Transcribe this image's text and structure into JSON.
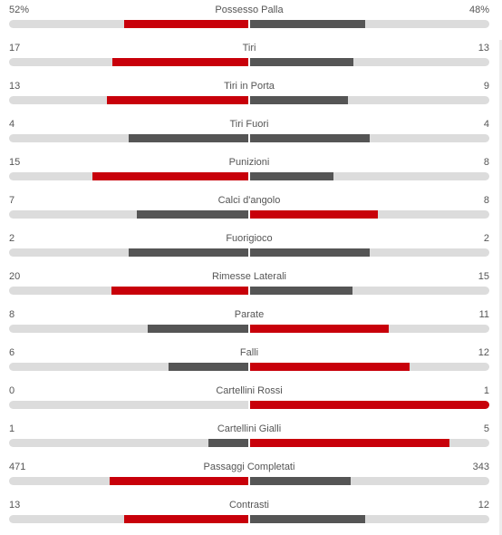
{
  "colors": {
    "leader": "#c8000a",
    "other": "#555555",
    "track": "#dcdcdc"
  },
  "stats": [
    {
      "label": "Possesso Palla",
      "home": "52%",
      "away": "48%",
      "home_fraction": 0.52,
      "away_fraction": 0.48
    },
    {
      "label": "Tiri",
      "home": "17",
      "away": "13",
      "home_fraction": 0.567,
      "away_fraction": 0.433
    },
    {
      "label": "Tiri in Porta",
      "home": "13",
      "away": "9",
      "home_fraction": 0.591,
      "away_fraction": 0.409
    },
    {
      "label": "Tiri Fuori",
      "home": "4",
      "away": "4",
      "home_fraction": 0.5,
      "away_fraction": 0.5
    },
    {
      "label": "Punizioni",
      "home": "15",
      "away": "8",
      "home_fraction": 0.652,
      "away_fraction": 0.348
    },
    {
      "label": "Calci d'angolo",
      "home": "7",
      "away": "8",
      "home_fraction": 0.467,
      "away_fraction": 0.533
    },
    {
      "label": "Fuorigioco",
      "home": "2",
      "away": "2",
      "home_fraction": 0.5,
      "away_fraction": 0.5
    },
    {
      "label": "Rimesse Laterali",
      "home": "20",
      "away": "15",
      "home_fraction": 0.571,
      "away_fraction": 0.429
    },
    {
      "label": "Parate",
      "home": "8",
      "away": "11",
      "home_fraction": 0.421,
      "away_fraction": 0.579
    },
    {
      "label": "Falli",
      "home": "6",
      "away": "12",
      "home_fraction": 0.333,
      "away_fraction": 0.667
    },
    {
      "label": "Cartellini Rossi",
      "home": "0",
      "away": "1",
      "home_fraction": 0.0,
      "away_fraction": 1.0
    },
    {
      "label": "Cartellini Gialli",
      "home": "1",
      "away": "5",
      "home_fraction": 0.167,
      "away_fraction": 0.833
    },
    {
      "label": "Passaggi Completati",
      "home": "471",
      "away": "343",
      "home_fraction": 0.579,
      "away_fraction": 0.421
    },
    {
      "label": "Contrasti",
      "home": "13",
      "away": "12",
      "home_fraction": 0.52,
      "away_fraction": 0.48
    }
  ]
}
